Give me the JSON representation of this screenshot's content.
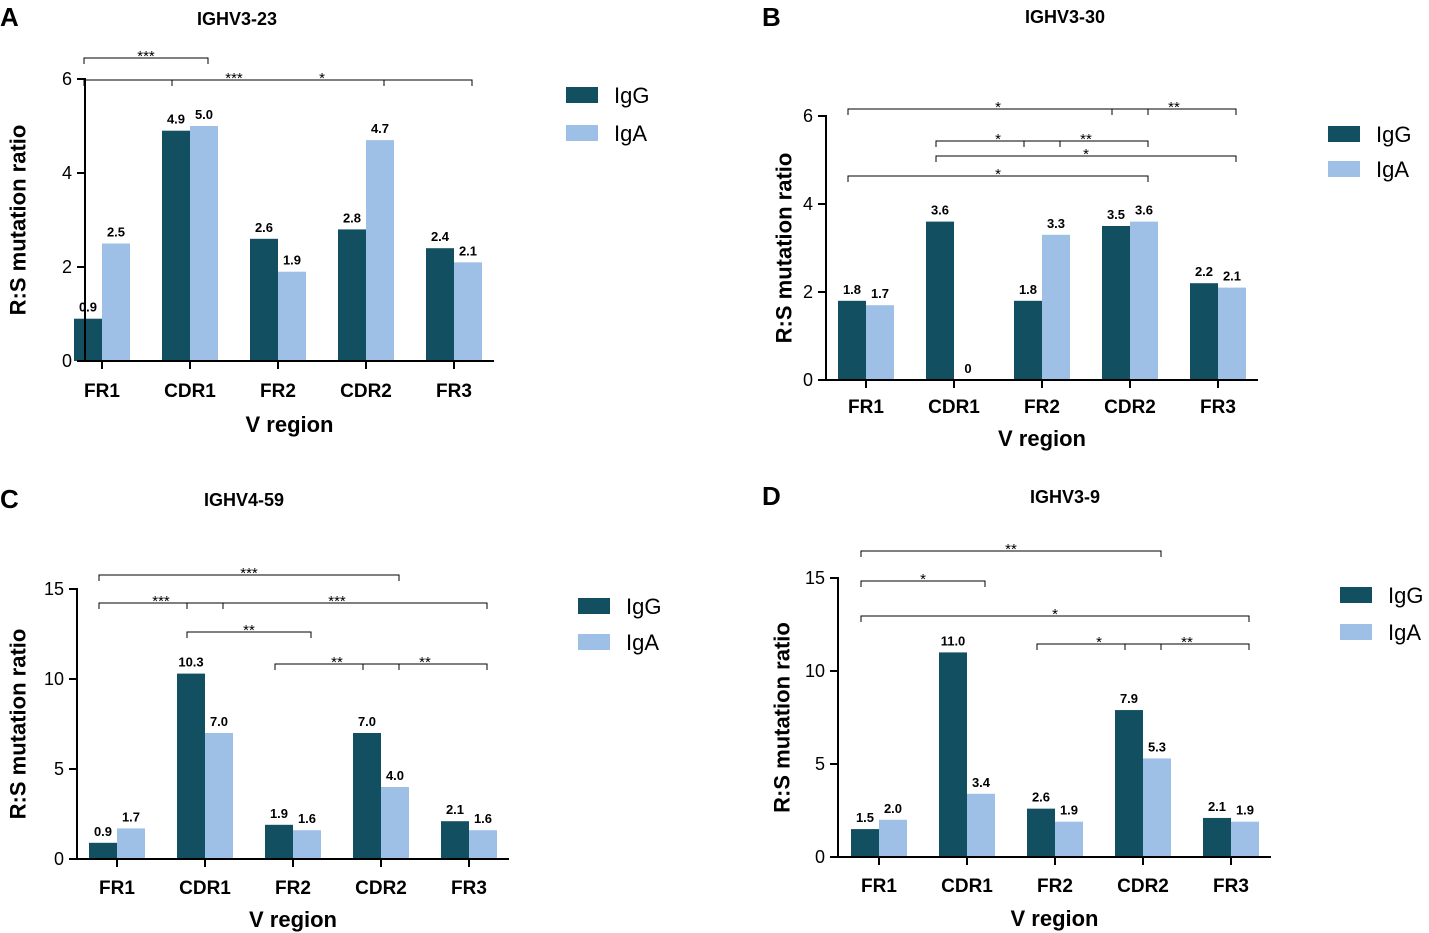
{
  "colors": {
    "IgG": "#124f61",
    "IgA": "#9ec0e7"
  },
  "chart_data": [
    {
      "panel": "A",
      "type": "bar",
      "title": "IGHV3-23",
      "categories": [
        "FR1",
        "CDR1",
        "FR2",
        "CDR2",
        "FR3"
      ],
      "series": [
        {
          "name": "IgG",
          "values": [
            0.9,
            4.9,
            2.6,
            2.8,
            2.4
          ],
          "labels": [
            "0.9",
            "4.9",
            "2.6",
            "2.8",
            "2.4"
          ]
        },
        {
          "name": "IgA",
          "values": [
            2.5,
            5.0,
            1.9,
            4.7,
            2.1
          ],
          "labels": [
            "2.5",
            "5.0",
            "1.9",
            "4.7",
            "2.1"
          ]
        }
      ],
      "xlabel": "V region",
      "ylabel": "R:S mutation ratio",
      "ylim": [
        0,
        6
      ],
      "yticks": [
        0,
        2,
        4,
        6
      ],
      "legend": "top-right",
      "significance": [
        {
          "from": "FR1",
          "to": "CDR1",
          "label": "***"
        },
        {
          "from": "CDR1",
          "to": "FR3",
          "label": "*"
        },
        {
          "from": "FR1",
          "to": "CDR2",
          "label": "***"
        }
      ]
    },
    {
      "panel": "B",
      "type": "bar",
      "title": "IGHV3-30",
      "categories": [
        "FR1",
        "CDR1",
        "FR2",
        "CDR2",
        "FR3"
      ],
      "series": [
        {
          "name": "IgG",
          "values": [
            1.8,
            3.6,
            1.8,
            3.5,
            2.2
          ],
          "labels": [
            "1.8",
            "3.6",
            "1.8",
            "3.5",
            "2.2"
          ]
        },
        {
          "name": "IgA",
          "values": [
            1.7,
            0,
            3.3,
            3.6,
            2.1
          ],
          "labels": [
            "1.7",
            "0",
            "3.3",
            "3.6",
            "2.1"
          ]
        }
      ],
      "xlabel": "V region",
      "ylabel": "R:S mutation ratio",
      "ylim": [
        0,
        6
      ],
      "yticks": [
        0,
        2,
        4,
        6
      ],
      "legend": "top-right",
      "significance": [
        {
          "from": "FR1",
          "to": "CDR2",
          "label": "*"
        },
        {
          "from": "CDR2",
          "to": "FR3",
          "label": "**"
        },
        {
          "from": "CDR1",
          "to": "FR2",
          "label": "*"
        },
        {
          "from": "FR2",
          "to": "CDR2",
          "label": "**"
        },
        {
          "from": "CDR1",
          "to": "FR3",
          "label": "*"
        },
        {
          "from": "FR1",
          "to": "CDR2",
          "label": "*"
        }
      ]
    },
    {
      "panel": "C",
      "type": "bar",
      "title": "IGHV4-59",
      "categories": [
        "FR1",
        "CDR1",
        "FR2",
        "CDR2",
        "FR3"
      ],
      "series": [
        {
          "name": "IgG",
          "values": [
            0.9,
            10.3,
            1.9,
            7.0,
            2.1
          ],
          "labels": [
            "0.9",
            "10.3",
            "1.9",
            "7.0",
            "2.1"
          ]
        },
        {
          "name": "IgA",
          "values": [
            1.7,
            7.0,
            1.6,
            4.0,
            1.6
          ],
          "labels": [
            "1.7",
            "7.0",
            "1.6",
            "4.0",
            "1.6"
          ]
        }
      ],
      "xlabel": "V region",
      "ylabel": "R:S mutation ratio",
      "ylim": [
        0,
        15
      ],
      "yticks": [
        0,
        5,
        10,
        15
      ],
      "legend": "top-right",
      "significance": [
        {
          "from": "FR1",
          "to": "CDR2",
          "label": "***"
        },
        {
          "from": "FR1",
          "to": "CDR1",
          "label": "***"
        },
        {
          "from": "CDR1",
          "to": "FR3",
          "label": "***"
        },
        {
          "from": "CDR1",
          "to": "FR2",
          "label": "**"
        },
        {
          "from": "FR2",
          "to": "CDR2",
          "label": "**"
        },
        {
          "from": "CDR2",
          "to": "FR3",
          "label": "**"
        }
      ]
    },
    {
      "panel": "D",
      "type": "bar",
      "title": "IGHV3-9",
      "categories": [
        "FR1",
        "CDR1",
        "FR2",
        "CDR2",
        "FR3"
      ],
      "series": [
        {
          "name": "IgG",
          "values": [
            1.5,
            11.0,
            2.6,
            7.9,
            2.1
          ],
          "labels": [
            "1.5",
            "11.0",
            "2.6",
            "7.9",
            "2.1"
          ]
        },
        {
          "name": "IgA",
          "values": [
            2.0,
            3.4,
            1.9,
            5.3,
            1.9
          ],
          "labels": [
            "2.0",
            "3.4",
            "1.9",
            "5.3",
            "1.9"
          ]
        }
      ],
      "xlabel": "V region",
      "ylabel": "R:S mutation ratio",
      "ylim": [
        0,
        15
      ],
      "yticks": [
        0,
        5,
        10,
        15
      ],
      "legend": "top-right",
      "significance": [
        {
          "from": "FR1",
          "to": "CDR2",
          "label": "**"
        },
        {
          "from": "FR1",
          "to": "CDR1",
          "label": "*"
        },
        {
          "from": "FR1",
          "to": "FR3",
          "label": "*"
        },
        {
          "from": "FR2",
          "to": "CDR2",
          "label": "*"
        },
        {
          "from": "CDR2",
          "to": "FR3",
          "label": "**"
        }
      ]
    }
  ]
}
